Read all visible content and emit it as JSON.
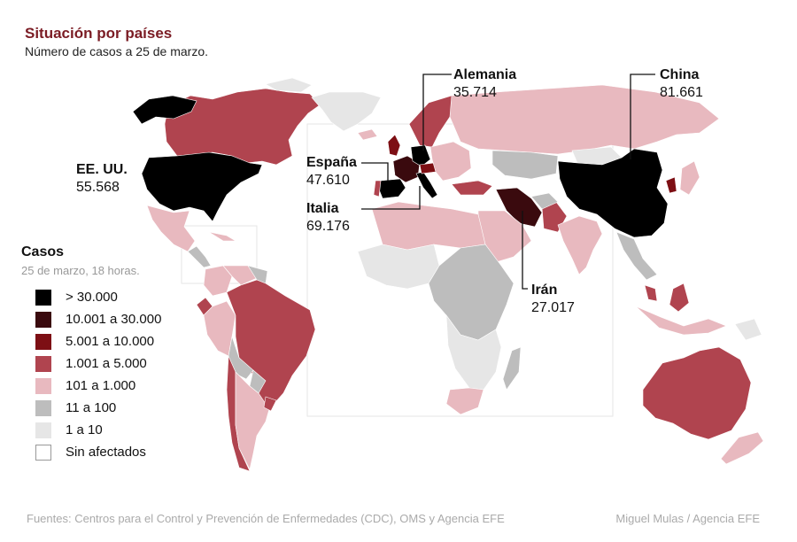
{
  "header": {
    "title": "Situación por países",
    "subtitle": "Número de casos a 25 de marzo."
  },
  "legend": {
    "title": "Casos",
    "subtitle": "25 de marzo, 18 horas.",
    "items": [
      {
        "label": "> 30.000",
        "color": "#000000"
      },
      {
        "label": "10.001 a 30.000",
        "color": "#3a0a0e"
      },
      {
        "label": "5.001 a 10.000",
        "color": "#7d0f14"
      },
      {
        "label": "1.001 a 5.000",
        "color": "#b0444f"
      },
      {
        "label": "101 a 1.000",
        "color": "#e8b9bf"
      },
      {
        "label": "11 a 100",
        "color": "#bdbdbd"
      },
      {
        "label": "1 a 10",
        "color": "#e6e6e6"
      },
      {
        "label": "Sin afectados",
        "color": "#ffffff"
      }
    ]
  },
  "callouts": [
    {
      "name": "Alemania",
      "value": "35.714"
    },
    {
      "name": "China",
      "value": "81.661"
    },
    {
      "name": "EE. UU.",
      "value": "55.568"
    },
    {
      "name": "España",
      "value": "47.610"
    },
    {
      "name": "Italia",
      "value": "69.176"
    },
    {
      "name": "Irán",
      "value": "27.017"
    }
  ],
  "footer": {
    "sources": "Fuentes: Centros para el Control y Prevención de Enfermedades (CDC), OMS y Agencia EFE",
    "credit": "Miguel Mulas / Agencia EFE"
  }
}
